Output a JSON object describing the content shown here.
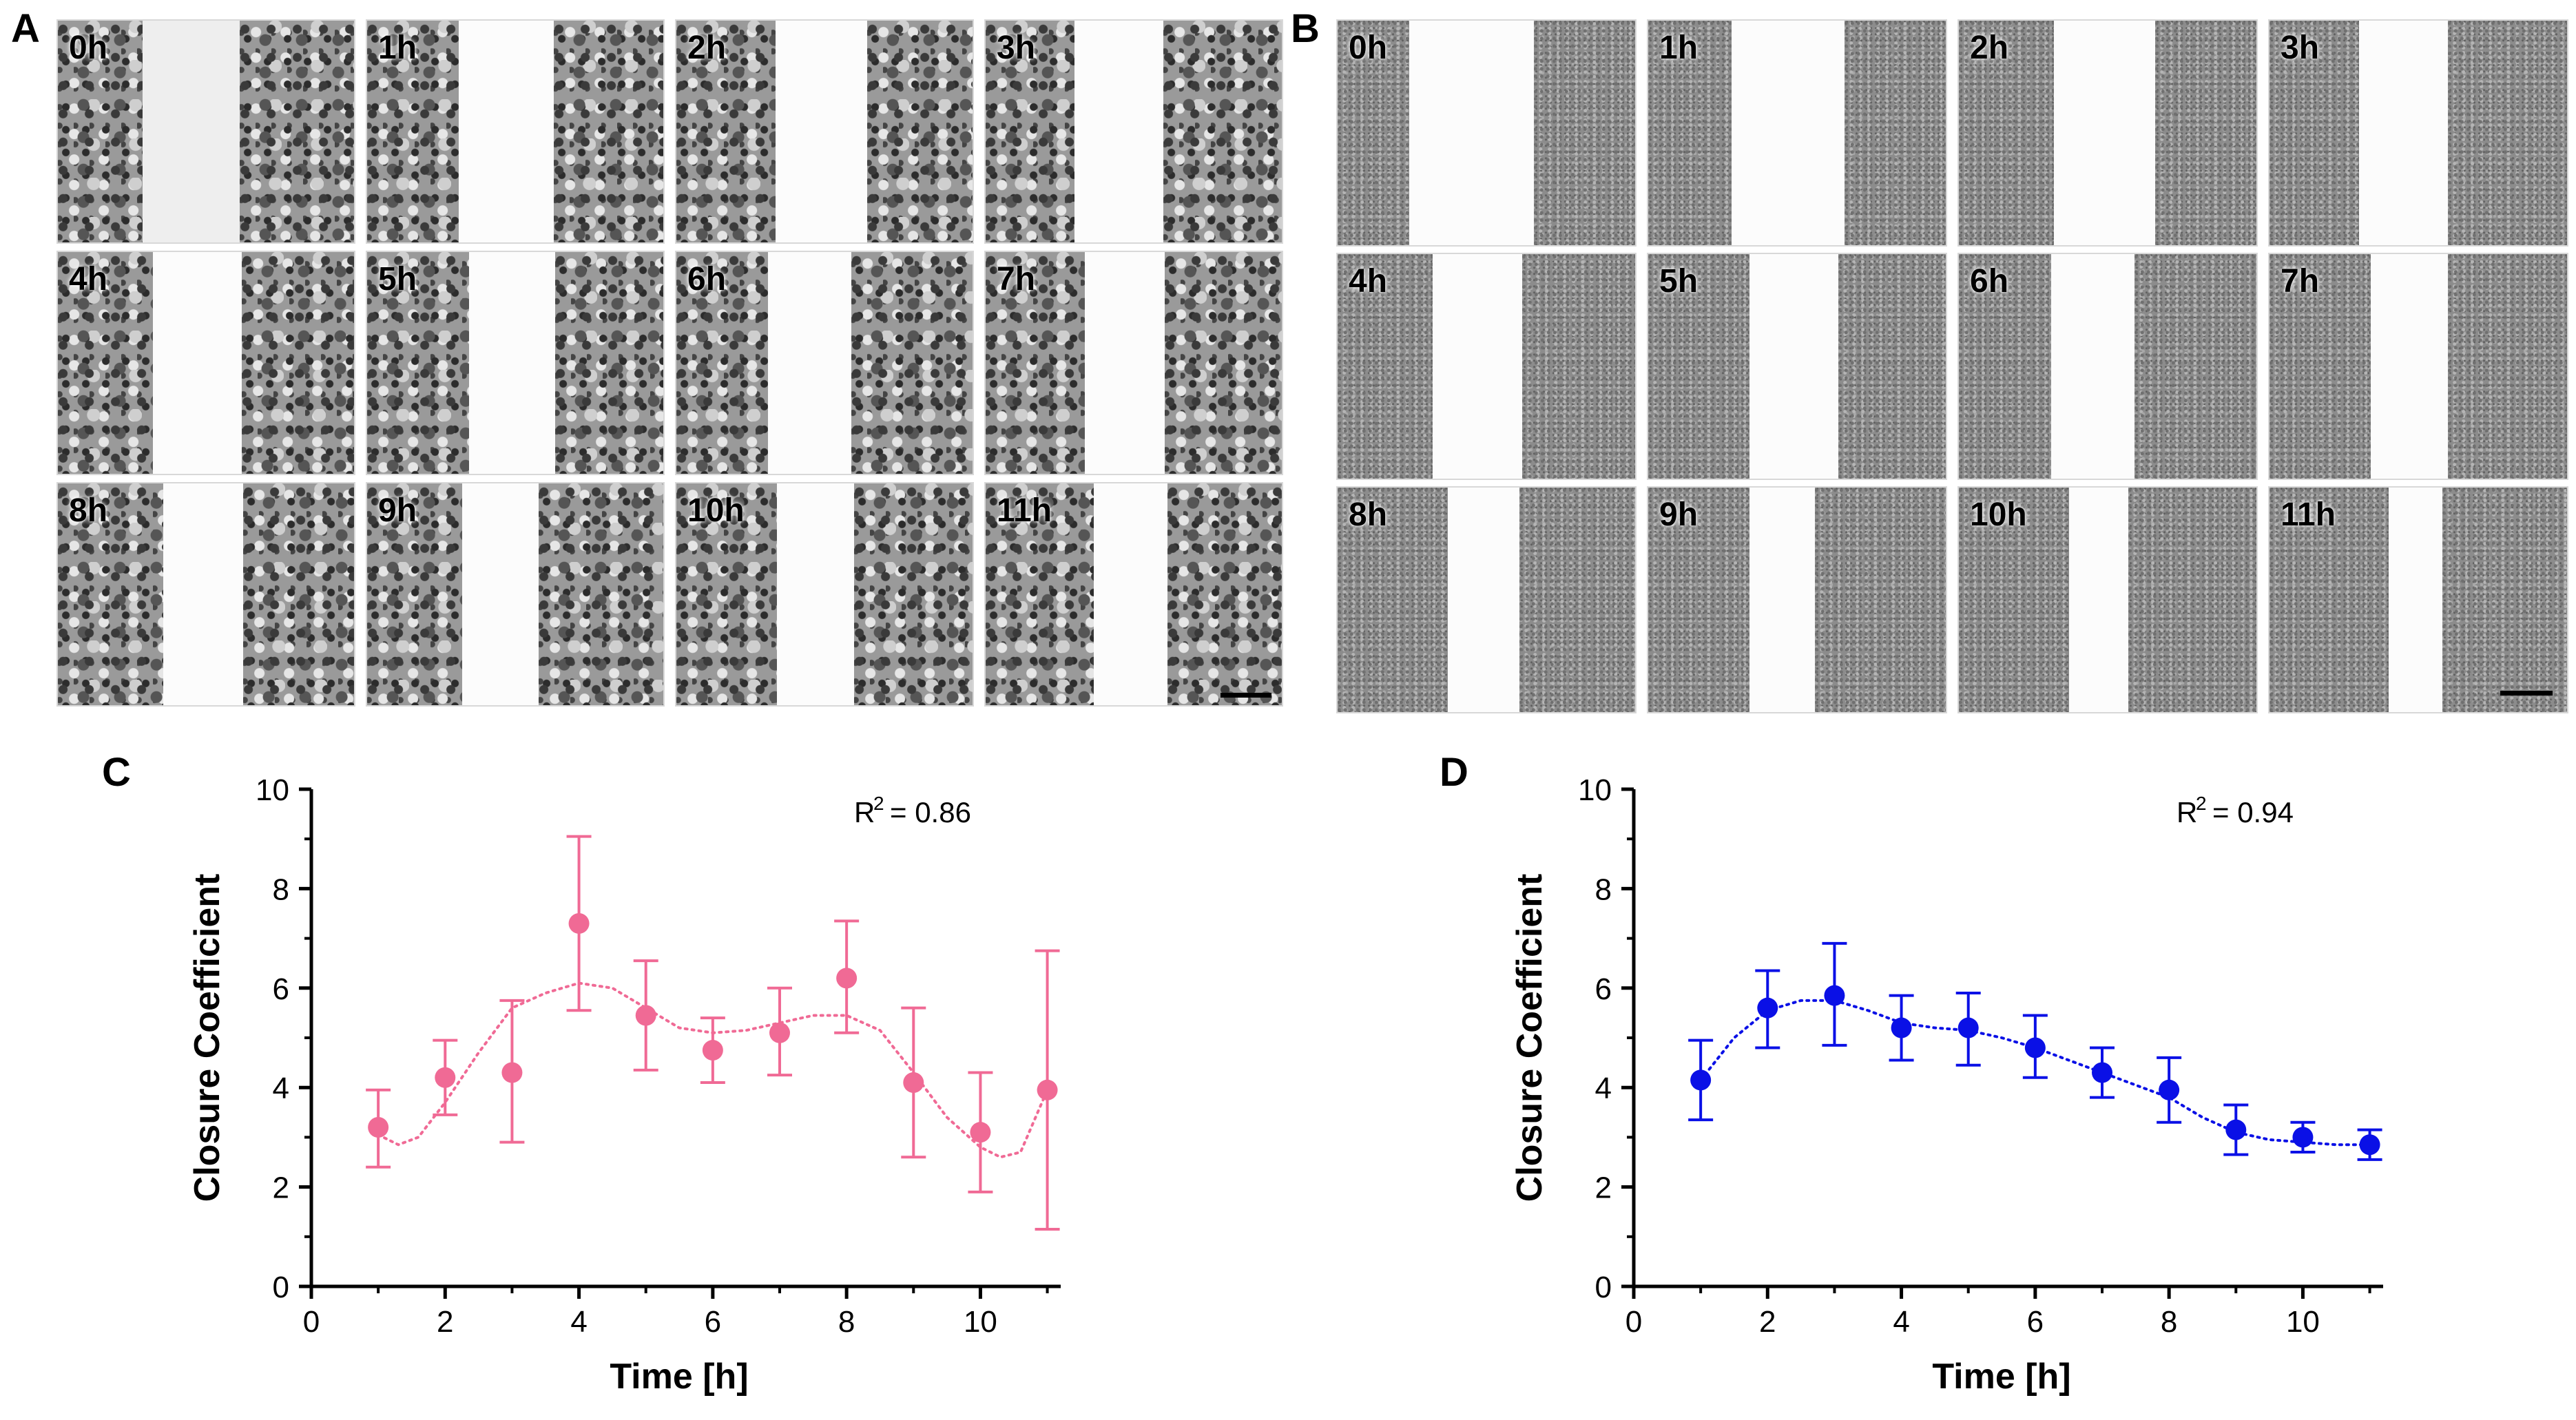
{
  "panels": {
    "a": "A",
    "b": "B",
    "c": "C",
    "d": "D"
  },
  "timelapse_labels": [
    "0h",
    "1h",
    "2h",
    "3h",
    "4h",
    "5h",
    "6h",
    "7h",
    "8h",
    "9h",
    "10h",
    "11h"
  ],
  "microscopy_a": {
    "wound_width_fraction": [
      0.33,
      0.32,
      0.31,
      0.3,
      0.3,
      0.29,
      0.28,
      0.27,
      0.27,
      0.26,
      0.26,
      0.25
    ]
  },
  "microscopy_b": {
    "wound_width_fraction": [
      0.42,
      0.38,
      0.34,
      0.3,
      0.3,
      0.3,
      0.28,
      0.26,
      0.24,
      0.22,
      0.2,
      0.18
    ]
  },
  "chart_data": [
    {
      "type": "scatter",
      "panel": "C",
      "xlabel": "Time [h]",
      "ylabel": "Closure Coefficient",
      "xlim": [
        0,
        11.2
      ],
      "ylim": [
        0,
        10
      ],
      "xticks": [
        0,
        2,
        4,
        6,
        8,
        10
      ],
      "yticks": [
        0,
        2,
        4,
        6,
        8,
        10
      ],
      "annotation_r2": "= 0.86",
      "color": "#f06a95",
      "series": [
        {
          "name": "Closure coefficient",
          "x": [
            1,
            2,
            3,
            4,
            5,
            6,
            7,
            8,
            9,
            10,
            11
          ],
          "y": [
            3.2,
            4.2,
            4.3,
            7.3,
            5.45,
            4.75,
            5.1,
            6.2,
            4.1,
            3.1,
            3.95
          ],
          "err_low": [
            2.4,
            3.45,
            2.9,
            5.55,
            4.35,
            4.1,
            4.25,
            5.1,
            2.6,
            1.9,
            1.15
          ],
          "err_high": [
            3.95,
            4.95,
            5.75,
            9.05,
            6.55,
            5.4,
            6.0,
            7.35,
            5.6,
            4.3,
            6.75
          ]
        }
      ],
      "fit": {
        "style": "dotted",
        "x": [
          1.0,
          1.3,
          1.6,
          2.0,
          2.5,
          3.0,
          3.5,
          4.0,
          4.5,
          5.0,
          5.5,
          6.0,
          6.5,
          7.0,
          7.5,
          8.0,
          8.5,
          9.0,
          9.5,
          10.0,
          10.3,
          10.6,
          11.0
        ],
        "y": [
          3.05,
          2.85,
          3.0,
          3.7,
          4.7,
          5.6,
          5.9,
          6.1,
          6.0,
          5.6,
          5.2,
          5.1,
          5.15,
          5.3,
          5.45,
          5.45,
          5.15,
          4.3,
          3.4,
          2.8,
          2.6,
          2.7,
          3.95
        ]
      }
    },
    {
      "type": "scatter",
      "panel": "D",
      "xlabel": "Time [h]",
      "ylabel": "Closure Coefficient",
      "xlim": [
        0,
        11.2
      ],
      "ylim": [
        0,
        10
      ],
      "xticks": [
        0,
        2,
        4,
        6,
        8,
        10
      ],
      "yticks": [
        0,
        2,
        4,
        6,
        8,
        10
      ],
      "annotation_r2": "= 0.94",
      "color": "#0a10e6",
      "series": [
        {
          "name": "Closure coefficient",
          "x": [
            1,
            2,
            3,
            4,
            5,
            6,
            7,
            8,
            9,
            10,
            11
          ],
          "y": [
            4.15,
            5.6,
            5.85,
            5.2,
            5.2,
            4.8,
            4.3,
            3.95,
            3.15,
            3.0,
            2.85
          ],
          "err_low": [
            3.35,
            4.8,
            4.85,
            4.55,
            4.45,
            4.2,
            3.8,
            3.3,
            2.65,
            2.7,
            2.55
          ],
          "err_high": [
            4.95,
            6.35,
            6.9,
            5.85,
            5.9,
            5.45,
            4.8,
            4.6,
            3.65,
            3.3,
            3.15
          ]
        }
      ],
      "fit": {
        "style": "dotted",
        "x": [
          1.0,
          1.5,
          2.0,
          2.5,
          3.0,
          3.5,
          4.0,
          4.5,
          5.0,
          5.5,
          6.0,
          6.5,
          7.0,
          7.5,
          8.0,
          8.5,
          9.0,
          9.5,
          10.0,
          10.5,
          11.0
        ],
        "y": [
          4.15,
          5.0,
          5.55,
          5.75,
          5.75,
          5.55,
          5.3,
          5.2,
          5.15,
          5.0,
          4.8,
          4.55,
          4.3,
          4.05,
          3.8,
          3.4,
          3.1,
          2.95,
          2.9,
          2.85,
          2.85
        ]
      }
    }
  ]
}
